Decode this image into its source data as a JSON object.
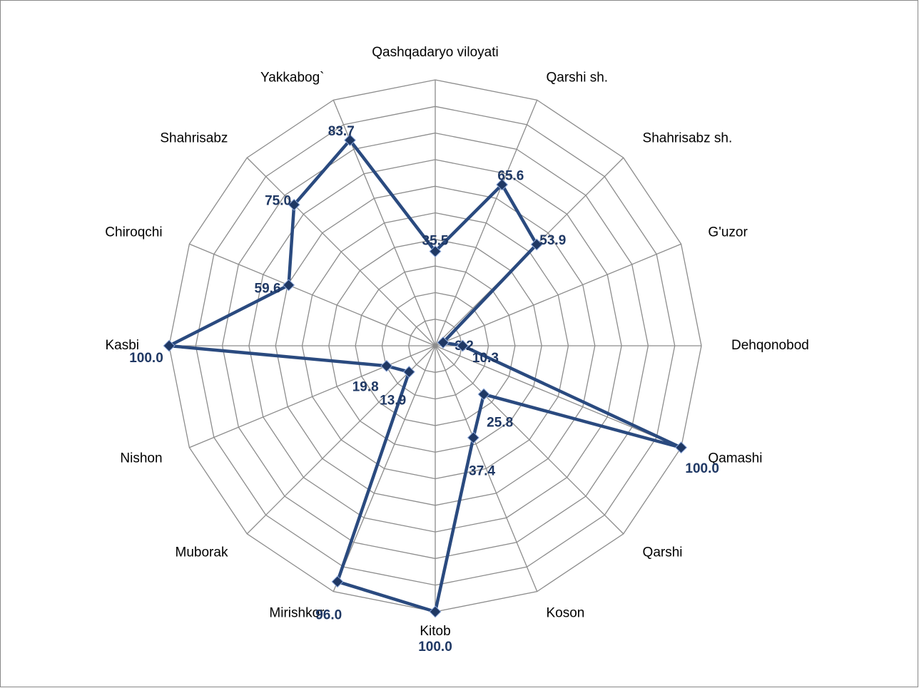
{
  "chart_data": {
    "type": "radar",
    "categories": [
      "Qashqadaryo viloyati",
      "Qarshi sh.",
      "Shahrisabz sh.",
      "G'uzor",
      "Dehqonobod",
      "Qamashi",
      "Qarshi",
      "Koson",
      "Kitob",
      "Mirishkor",
      "Muborak",
      "Nishon",
      "Kasbi",
      "Chiroqchi",
      "Shahrisabz",
      "Yakkabog`"
    ],
    "values": [
      35.5,
      65.6,
      53.9,
      3.2,
      10.3,
      100,
      25.8,
      37.4,
      100,
      96,
      13.9,
      19.8,
      100,
      59.6,
      75,
      83.7
    ],
    "value_labels": [
      "35.5",
      "65.6",
      "53.9",
      "3.2",
      "10.3",
      "100.0",
      "25.8",
      "37.4",
      "100.0",
      "96.0",
      "13.9",
      "19.8",
      "100.0",
      "59.6",
      "75.0",
      "83.7"
    ],
    "color": "#2a4a7f",
    "rlim": [
      0,
      100
    ],
    "rticks": [
      0,
      10,
      20,
      30,
      40,
      50,
      60,
      70,
      80,
      90,
      100
    ],
    "grid": true
  }
}
